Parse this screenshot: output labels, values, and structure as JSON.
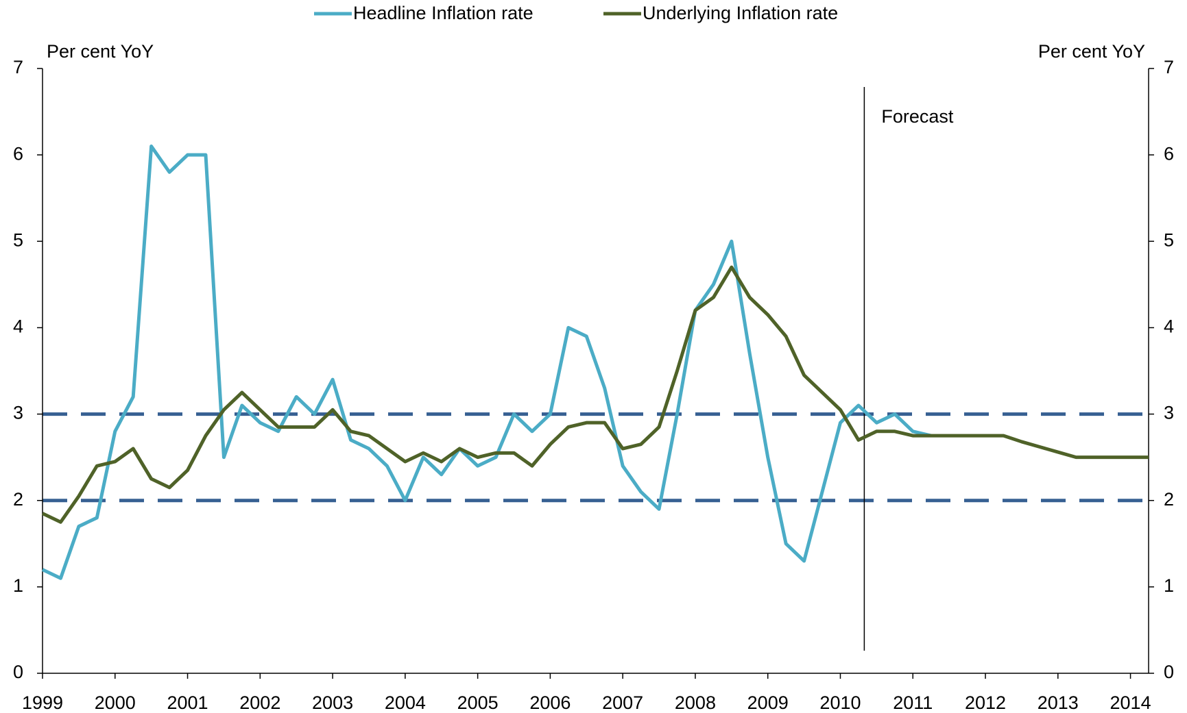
{
  "chart_data": {
    "type": "line",
    "y_axis_label": "Per cent YoY",
    "y2_axis_label": "Per cent YoY",
    "annotation": "Forecast",
    "forecast_x": 2010.33,
    "reference_lines": [
      2,
      3
    ],
    "reference_color": "#376092",
    "x": [
      1999,
      1999.25,
      1999.5,
      1999.75,
      2000,
      2000.25,
      2000.5,
      2000.75,
      2001,
      2001.25,
      2001.5,
      2001.75,
      2002,
      2002.25,
      2002.5,
      2002.75,
      2003,
      2003.25,
      2003.5,
      2003.75,
      2004,
      2004.25,
      2004.5,
      2004.75,
      2005,
      2005.25,
      2005.5,
      2005.75,
      2006,
      2006.25,
      2006.5,
      2006.75,
      2007,
      2007.25,
      2007.5,
      2007.75,
      2008,
      2008.25,
      2008.5,
      2008.75,
      2009,
      2009.25,
      2009.5,
      2009.75,
      2010,
      2010.25,
      2010.5,
      2010.75,
      2011,
      2011.25,
      2011.5,
      2011.75,
      2012,
      2012.25,
      2012.5,
      2012.75,
      2013,
      2013.25,
      2013.5,
      2013.75,
      2014,
      2014.25
    ],
    "series": [
      {
        "name": "Headline Inflation rate",
        "color": "#4bacc6",
        "values": [
          1.2,
          1.1,
          1.7,
          1.8,
          2.8,
          3.2,
          6.1,
          5.8,
          6.0,
          6.0,
          2.5,
          3.1,
          2.9,
          2.8,
          3.2,
          3.0,
          3.4,
          2.7,
          2.6,
          2.4,
          2.0,
          2.5,
          2.3,
          2.6,
          2.4,
          2.5,
          3.0,
          2.8,
          3.0,
          4.0,
          3.9,
          3.3,
          2.4,
          2.1,
          1.9,
          3.0,
          4.2,
          4.5,
          5.0,
          3.7,
          2.5,
          1.5,
          1.3,
          2.1,
          2.9,
          3.1,
          2.9,
          3.0,
          2.8,
          2.75,
          null,
          null,
          null,
          null,
          null,
          null,
          null,
          null,
          null,
          null,
          null,
          null
        ]
      },
      {
        "name": "Underlying Inflation rate",
        "color": "#4f6228",
        "values": [
          1.85,
          1.75,
          2.05,
          2.4,
          2.45,
          2.6,
          2.25,
          2.15,
          2.35,
          2.75,
          3.05,
          3.25,
          3.05,
          2.85,
          2.85,
          2.85,
          3.05,
          2.8,
          2.75,
          2.6,
          2.45,
          2.55,
          2.45,
          2.6,
          2.5,
          2.55,
          2.55,
          2.4,
          2.65,
          2.85,
          2.9,
          2.9,
          2.6,
          2.65,
          2.85,
          3.5,
          4.2,
          4.35,
          4.7,
          4.35,
          4.15,
          3.9,
          3.45,
          3.25,
          3.05,
          2.7,
          2.8,
          2.8,
          2.75,
          2.75,
          2.75,
          2.75,
          2.75,
          2.75,
          2.68,
          2.62,
          2.56,
          2.5,
          2.5,
          2.5,
          2.5,
          2.5
        ]
      }
    ],
    "xlim": [
      1999,
      2014.25
    ],
    "xticks": [
      1999,
      2000,
      2001,
      2002,
      2003,
      2004,
      2005,
      2006,
      2007,
      2008,
      2009,
      2010,
      2011,
      2012,
      2013,
      2014
    ],
    "ylim": [
      0,
      7
    ],
    "yticks": [
      0,
      1,
      2,
      3,
      4,
      5,
      6,
      7
    ],
    "y2lim": [
      0,
      7
    ],
    "y2ticks": [
      0,
      1,
      2,
      3,
      4,
      5,
      6,
      7
    ],
    "legend": "top"
  }
}
